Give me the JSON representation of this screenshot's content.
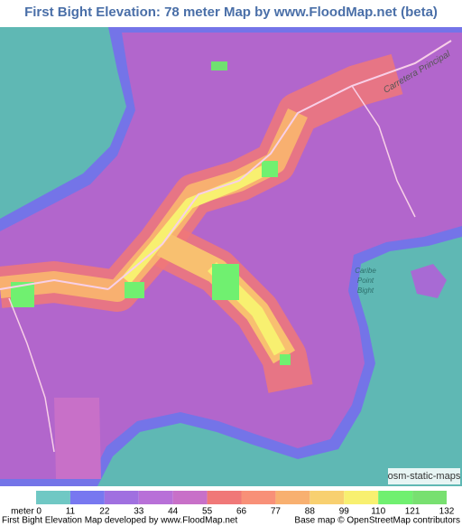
{
  "title": "First Bight Elevation: 78 meter Map by www.FloodMap.net (beta)",
  "map_labels": {
    "road": "Carretera Principal",
    "bay": [
      "Caribe",
      "Point",
      "Bight"
    ],
    "credit": "osm-static-maps"
  },
  "legend": {
    "labels": [
      "meter 0",
      "11",
      "22",
      "33",
      "44",
      "55",
      "66",
      "77",
      "88",
      "99",
      "110",
      "121",
      "132"
    ],
    "colors": [
      "#70c8c4",
      "#7878f0",
      "#a070e0",
      "#b870d8",
      "#c870c8",
      "#f07878",
      "#f89078",
      "#f8b070",
      "#f8d070",
      "#f8f070",
      "#70f070",
      "#78e070"
    ]
  },
  "footer": {
    "left": "First Bight Elevation Map developed by www.FloodMap.net",
    "right": "Base map © OpenStreetMap contributors"
  }
}
